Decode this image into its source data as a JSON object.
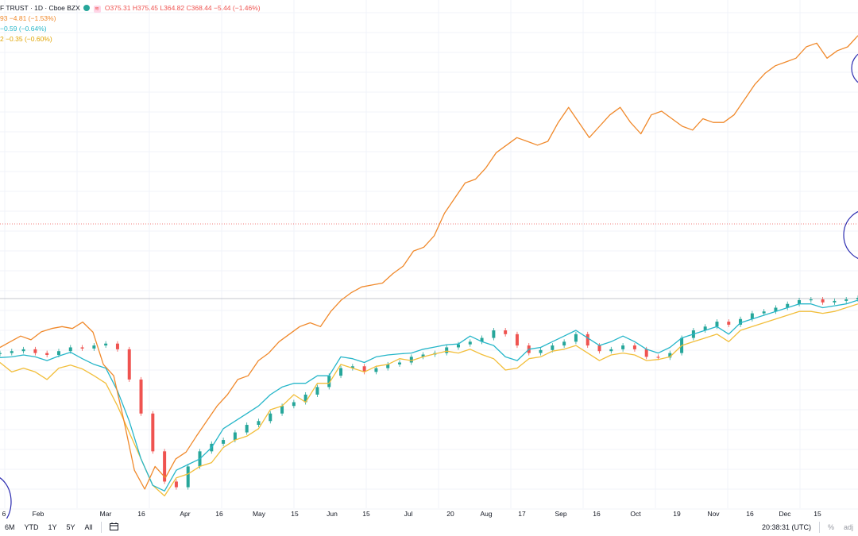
{
  "legend": {
    "main": {
      "title": "F TRUST · 1D · Cboe BZX",
      "open": "O375.31",
      "high": "H375.45",
      "low": "L364.82",
      "close": "C368.44",
      "change": "−5.44 (−1.46%)"
    },
    "series_rows": [
      {
        "text": "93 −4.81 (−1.53%)",
        "color": "#f0892b"
      },
      {
        "text": "−0.59 (−0.64%)",
        "color": "#26b6c9"
      },
      {
        "text": "2 −0.35 (−0.60%)",
        "color": "#f2be3a"
      }
    ]
  },
  "toolbar": {
    "ranges": [
      "6M",
      "YTD",
      "1Y",
      "5Y",
      "All"
    ],
    "time": "20:38:31 (UTC)",
    "percent": "%",
    "adj": "adj"
  },
  "colors": {
    "orange": "#f0892b",
    "teal": "#26b6c9",
    "yellow": "#f2be3a",
    "up": "#26a69a",
    "down": "#ef5350",
    "annotation": "#2c2cb0"
  },
  "chart_data": {
    "type": "line",
    "x_tick_labels": [
      "6",
      "Feb",
      "Mar",
      "16",
      "Apr",
      "16",
      "May",
      "15",
      "Jun",
      "15",
      "Jul",
      "20",
      "Aug",
      "17",
      "Sep",
      "16",
      "Oct",
      "19",
      "Nov",
      "16",
      "Dec",
      "15"
    ],
    "y_axis": "unlabeled",
    "series": [
      {
        "color": "#f0892b",
        "values": [
          101.5,
          103,
          104.5,
          103.5,
          105.6,
          106.5,
          107,
          106.5,
          108.2,
          105.5,
          97,
          94,
          82,
          69,
          64,
          70,
          67,
          72,
          73.8,
          78,
          82,
          86,
          89,
          93,
          94,
          98,
          100,
          103,
          105,
          107,
          108,
          107,
          111,
          114,
          116,
          117.5,
          118,
          118.5,
          121,
          123,
          127,
          128,
          131,
          137,
          141,
          145,
          146,
          149,
          153,
          155,
          157,
          156,
          155,
          156,
          161,
          165,
          161,
          157,
          160,
          163,
          165,
          161,
          158,
          163,
          164,
          162,
          160,
          159,
          162,
          161,
          161,
          163,
          167,
          171,
          174,
          176,
          177,
          178,
          181,
          182,
          178,
          180,
          181,
          184
        ]
      },
      {
        "color": "#26b6c9",
        "values": [
          98.8,
          99,
          99.5,
          99,
          98,
          99.2,
          100.2,
          98.5,
          97,
          96,
          90,
          82,
          72,
          65,
          63.5,
          69,
          70.5,
          72,
          75,
          80,
          82,
          84,
          86,
          89,
          91,
          92,
          92,
          94,
          94,
          99,
          98.5,
          97.5,
          99,
          99.5,
          99.8,
          100,
          101,
          101.6,
          102.2,
          102.4,
          104.5,
          103,
          102,
          99,
          98,
          101,
          101.5,
          103,
          104.5,
          106,
          104,
          102,
          103,
          104.5,
          103,
          101,
          100,
          101.5,
          104,
          105,
          106,
          107,
          105,
          108,
          109,
          110,
          111,
          112,
          113,
          113,
          112,
          112.5,
          113,
          114
        ]
      },
      {
        "color": "#f2be3a",
        "values": [
          97.5,
          95,
          96,
          95,
          93,
          96,
          96.8,
          95.8,
          94,
          92,
          86,
          79,
          72,
          65,
          62.2,
          67,
          68,
          70,
          71,
          75,
          77,
          78,
          80,
          85,
          86,
          89,
          87,
          92,
          92,
          97,
          96,
          95,
          96.5,
          97,
          98.5,
          98,
          99,
          99.8,
          100.5,
          100,
          101,
          99.6,
          98.5,
          95.5,
          96,
          98.5,
          99,
          100.5,
          101,
          102,
          100,
          98,
          99.5,
          100,
          99.5,
          98,
          98.3,
          99,
          102,
          103,
          104,
          105,
          103,
          106,
          107,
          108,
          109,
          110,
          111,
          111,
          110.5,
          111,
          112,
          113
        ]
      },
      {
        "type": "candlestick",
        "color_up": "#26a69a",
        "color_down": "#ef5350",
        "values": [
          100,
          100.5,
          101,
          100,
          99.5,
          100.5,
          101.5,
          101.2,
          102,
          102.5,
          101,
          93,
          84,
          74,
          66,
          64.5,
          70,
          74,
          76,
          77,
          79,
          81,
          82,
          84,
          86,
          87,
          89,
          91,
          94,
          96,
          96.5,
          95,
          96,
          97,
          97.5,
          99,
          99.6,
          100,
          101.5,
          102.3,
          103,
          104,
          106,
          105,
          102,
          100,
          100.8,
          102,
          103,
          105,
          102,
          100.5,
          101,
          102,
          101,
          99,
          98.8,
          100,
          104,
          106,
          107,
          108.3,
          107.5,
          109,
          110.5,
          111,
          112,
          113,
          114,
          114.2,
          113.4,
          113.8,
          114.2,
          114.6
        ]
      }
    ],
    "reference_lines": [
      "dotted red price line",
      "grey baseline"
    ],
    "annotations": [
      "blue hand-drawn circles at right edge (two) and bottom-left"
    ],
    "grid": true
  }
}
